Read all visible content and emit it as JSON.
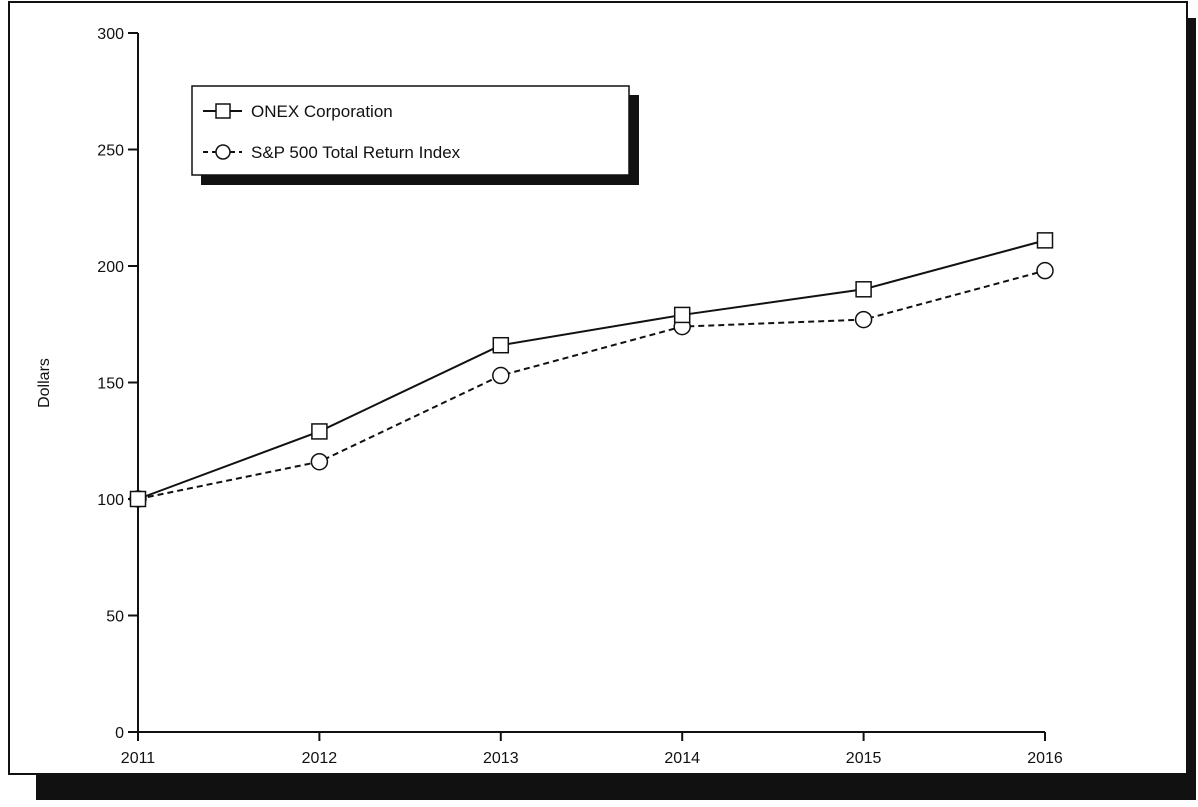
{
  "chart_data": {
    "type": "line",
    "ylabel": "Dollars",
    "xlabel": "",
    "categories": [
      "2011",
      "2012",
      "2013",
      "2014",
      "2015",
      "2016"
    ],
    "ylim": [
      0,
      300
    ],
    "yticks": [
      0,
      50,
      100,
      150,
      200,
      250,
      300
    ],
    "legend_position": "top-left",
    "grid": false,
    "series": [
      {
        "name": "ONEX Corporation",
        "marker": "square",
        "line_style": "solid",
        "values": [
          100,
          129,
          166,
          179,
          190,
          211
        ]
      },
      {
        "name": "S&P 500 Total Return Index",
        "marker": "circle",
        "line_style": "dashed",
        "values": [
          100,
          116,
          153,
          174,
          177,
          198
        ]
      }
    ]
  }
}
